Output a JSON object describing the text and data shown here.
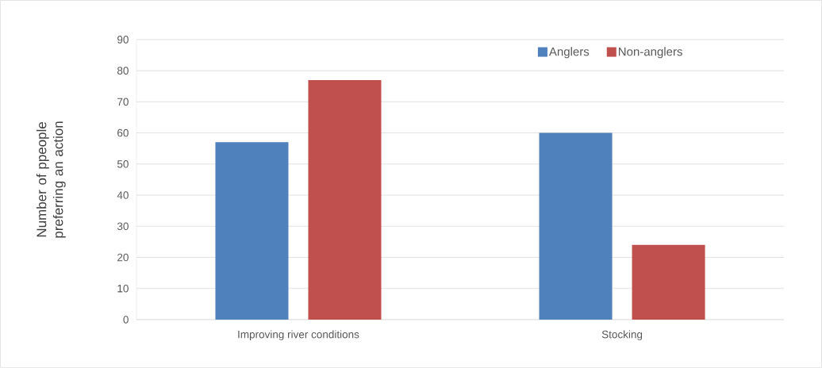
{
  "chart_data": {
    "type": "bar",
    "ylabel": "Number of ppeople preferring an action",
    "categories": [
      "Improving river conditions",
      "Stocking"
    ],
    "series": [
      {
        "name": "Anglers",
        "color": "#4f81bd",
        "values": [
          57,
          60
        ]
      },
      {
        "name": "Non-anglers",
        "color": "#c0504d",
        "values": [
          77,
          24
        ]
      }
    ],
    "ylim": [
      0,
      90
    ],
    "yticks": [
      0,
      10,
      20,
      30,
      40,
      50,
      60,
      70,
      80,
      90
    ],
    "grid": "y",
    "legend": "top right"
  }
}
